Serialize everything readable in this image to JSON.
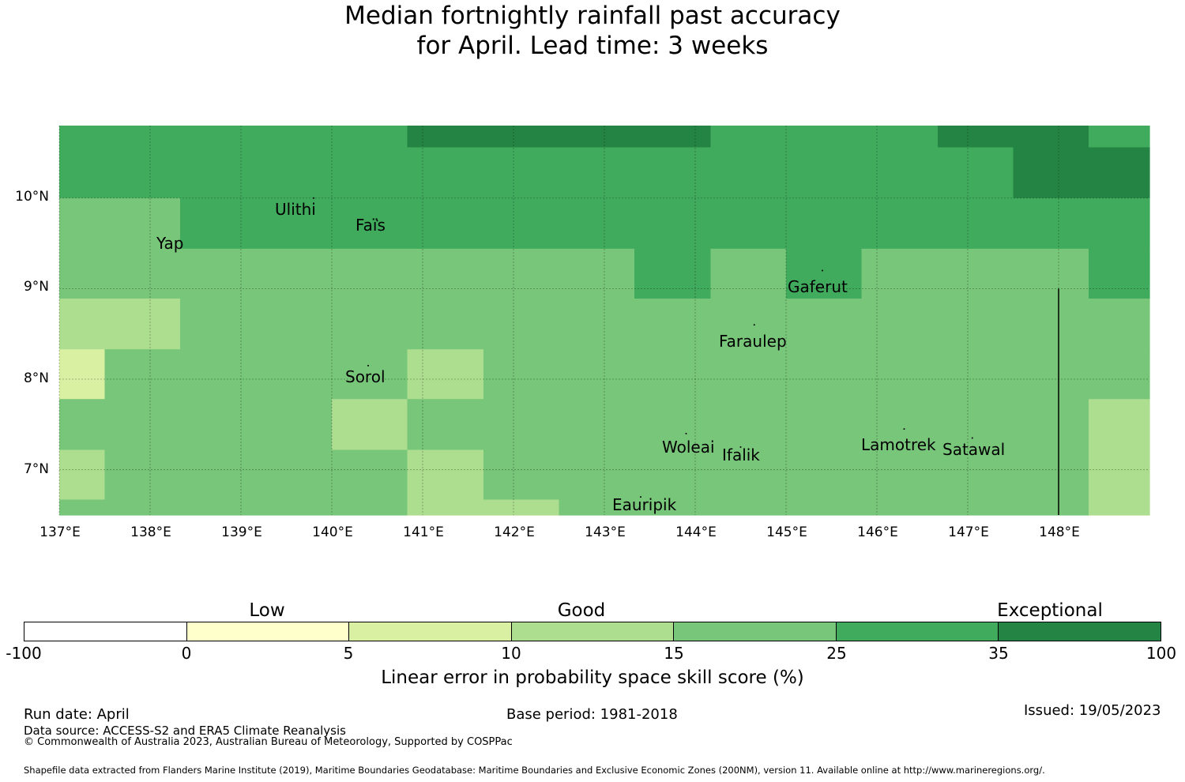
{
  "title": {
    "line1": "Median fortnightly rainfall past accuracy",
    "line2": "for April. Lead time: 3 weeks"
  },
  "map": {
    "lon_range": [
      137,
      149
    ],
    "lat_range": [
      6.5,
      10.8
    ],
    "lon_ticks": [
      "137°E",
      "138°E",
      "139°E",
      "140°E",
      "141°E",
      "142°E",
      "143°E",
      "144°E",
      "145°E",
      "146°E",
      "147°E",
      "148°E"
    ],
    "lat_ticks": [
      "10°N",
      "9°N",
      "8°N",
      "7°N"
    ],
    "grid": true,
    "places": [
      {
        "name": "Ulithi",
        "lon": 139.8,
        "lat": 10.0
      },
      {
        "name": "Faïs",
        "lon": 140.5,
        "lat": 9.75
      },
      {
        "name": "Yap",
        "lon": 138.15,
        "lat": 9.55
      },
      {
        "name": "Gaferut",
        "lon": 145.4,
        "lat": 9.2
      },
      {
        "name": "Faraulep",
        "lon": 144.65,
        "lat": 8.6
      },
      {
        "name": "Sorol",
        "lon": 140.4,
        "lat": 8.15
      },
      {
        "name": "Woleai",
        "lon": 143.9,
        "lat": 7.4
      },
      {
        "name": "Ifalik",
        "lon": 144.5,
        "lat": 7.25
      },
      {
        "name": "Lamotrek",
        "lon": 146.3,
        "lat": 7.45
      },
      {
        "name": "Satawal",
        "lon": 147.05,
        "lat": 7.35
      },
      {
        "name": "Eauripik",
        "lon": 143.4,
        "lat": 6.7
      }
    ]
  },
  "chart_data": {
    "type": "heatmap",
    "title": "Median fortnightly rainfall past accuracy for April. Lead time: 3 weeks",
    "value_meaning": "colour class index 0..7 matching colorbar bins",
    "bins": [
      -100,
      0,
      5,
      10,
      15,
      25,
      35,
      100
    ],
    "colors": [
      "#ffffff",
      "#ffffcc",
      "#d9f0a3",
      "#addd8e",
      "#78c679",
      "#41ab5d",
      "#238443"
    ],
    "categories": [
      "Low",
      "Good",
      "Exceptional"
    ],
    "xlabel": "",
    "ylabel": "",
    "regions": [
      {
        "lon": [
          137.0,
          140.83
        ],
        "lat": [
          10.0,
          10.8
        ],
        "class": 5
      },
      {
        "lon": [
          140.83,
          144.17
        ],
        "lat": [
          10.56,
          10.8
        ],
        "class": 6
      },
      {
        "lon": [
          140.83,
          144.17
        ],
        "lat": [
          10.0,
          10.56
        ],
        "class": 5
      },
      {
        "lon": [
          144.17,
          146.67
        ],
        "lat": [
          10.0,
          10.8
        ],
        "class": 5
      },
      {
        "lon": [
          146.67,
          148.33
        ],
        "lat": [
          10.56,
          10.8
        ],
        "class": 6
      },
      {
        "lon": [
          146.67,
          147.5
        ],
        "lat": [
          10.0,
          10.56
        ],
        "class": 5
      },
      {
        "lon": [
          147.5,
          148.33
        ],
        "lat": [
          10.0,
          10.56
        ],
        "class": 6
      },
      {
        "lon": [
          148.33,
          149.0
        ],
        "lat": [
          10.56,
          10.8
        ],
        "class": 5
      },
      {
        "lon": [
          148.33,
          149.0
        ],
        "lat": [
          10.0,
          10.56
        ],
        "class": 6
      },
      {
        "lon": [
          137.0,
          138.33
        ],
        "lat": [
          9.44,
          10.0
        ],
        "class": 4
      },
      {
        "lon": [
          138.33,
          149.0
        ],
        "lat": [
          9.44,
          10.0
        ],
        "class": 5
      },
      {
        "lon": [
          137.0,
          143.33
        ],
        "lat": [
          8.89,
          9.44
        ],
        "class": 4
      },
      {
        "lon": [
          143.33,
          144.17
        ],
        "lat": [
          8.89,
          9.44
        ],
        "class": 5
      },
      {
        "lon": [
          144.17,
          145.0
        ],
        "lat": [
          8.89,
          9.44
        ],
        "class": 4
      },
      {
        "lon": [
          145.0,
          145.83
        ],
        "lat": [
          8.89,
          9.44
        ],
        "class": 5
      },
      {
        "lon": [
          145.83,
          148.33
        ],
        "lat": [
          8.89,
          9.44
        ],
        "class": 4
      },
      {
        "lon": [
          148.33,
          149.0
        ],
        "lat": [
          8.89,
          9.44
        ],
        "class": 5
      },
      {
        "lon": [
          137.0,
          138.33
        ],
        "lat": [
          8.33,
          8.89
        ],
        "class": 3
      },
      {
        "lon": [
          138.33,
          149.0
        ],
        "lat": [
          8.33,
          8.89
        ],
        "class": 4
      },
      {
        "lon": [
          137.0,
          137.5
        ],
        "lat": [
          7.78,
          8.33
        ],
        "class": 2
      },
      {
        "lon": [
          137.5,
          140.83
        ],
        "lat": [
          7.78,
          8.33
        ],
        "class": 4
      },
      {
        "lon": [
          140.83,
          141.67
        ],
        "lat": [
          7.78,
          8.33
        ],
        "class": 3
      },
      {
        "lon": [
          141.67,
          149.0
        ],
        "lat": [
          7.78,
          8.33
        ],
        "class": 4
      },
      {
        "lon": [
          137.0,
          140.0
        ],
        "lat": [
          7.22,
          7.78
        ],
        "class": 4
      },
      {
        "lon": [
          140.0,
          140.83
        ],
        "lat": [
          7.22,
          7.78
        ],
        "class": 3
      },
      {
        "lon": [
          140.83,
          148.33
        ],
        "lat": [
          7.22,
          7.78
        ],
        "class": 4
      },
      {
        "lon": [
          148.33,
          149.0
        ],
        "lat": [
          7.22,
          7.78
        ],
        "class": 3
      },
      {
        "lon": [
          137.0,
          137.5
        ],
        "lat": [
          6.67,
          7.22
        ],
        "class": 3
      },
      {
        "lon": [
          137.5,
          140.83
        ],
        "lat": [
          6.67,
          7.22
        ],
        "class": 4
      },
      {
        "lon": [
          140.83,
          141.67
        ],
        "lat": [
          6.67,
          7.22
        ],
        "class": 3
      },
      {
        "lon": [
          141.67,
          148.33
        ],
        "lat": [
          6.67,
          7.22
        ],
        "class": 4
      },
      {
        "lon": [
          148.33,
          149.0
        ],
        "lat": [
          6.67,
          7.22
        ],
        "class": 3
      },
      {
        "lon": [
          137.0,
          140.83
        ],
        "lat": [
          6.5,
          6.67
        ],
        "class": 4
      },
      {
        "lon": [
          140.83,
          142.5
        ],
        "lat": [
          6.5,
          6.67
        ],
        "class": 3
      },
      {
        "lon": [
          142.5,
          148.33
        ],
        "lat": [
          6.5,
          6.67
        ],
        "class": 4
      },
      {
        "lon": [
          148.33,
          149.0
        ],
        "lat": [
          6.5,
          6.67
        ],
        "class": 3
      }
    ],
    "boundary_line": {
      "lon": 148.0,
      "lat": [
        6.5,
        9.0
      ]
    }
  },
  "colorbar": {
    "categories": [
      {
        "label": "Low"
      },
      {
        "label": "Good"
      },
      {
        "label": "Exceptional"
      }
    ],
    "tick_labels": [
      "-100",
      "0",
      "5",
      "10",
      "15",
      "25",
      "35",
      "100"
    ],
    "label": "Linear error in probability space skill score (%)"
  },
  "footer": {
    "run_date": "Run date: April",
    "base_period": "Base period: 1981-2018",
    "issued": "Issued: 19/05/2023",
    "data_source": "Data source: ACCESS-S2 and ERA5 Climate Reanalysis",
    "copyright": "© Commonwealth of Australia 2023, Australian Bureau of Meteorology, Supported by COSPPac",
    "shapefile": "Shapefile data extracted from Flanders Marine Institute (2019), Maritime Boundaries Geodatabase: Maritime Boundaries and Exclusive Economic Zones (200NM), version 11. Available online at http://www.marineregions.org/."
  }
}
